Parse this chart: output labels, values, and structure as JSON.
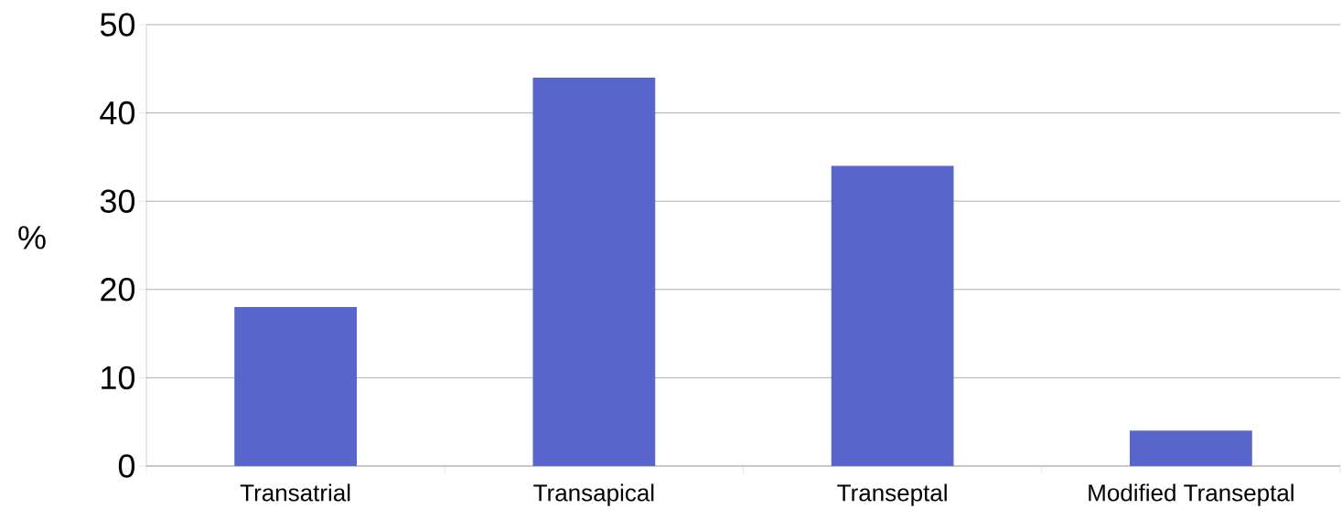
{
  "chart_data": {
    "type": "bar",
    "ylabel": "%",
    "categories": [
      "Transatrial",
      "Transapical",
      "Transeptal",
      "Modified Transeptal"
    ],
    "values": [
      18,
      44,
      34,
      4
    ],
    "color": "#5866cc",
    "ylim": [
      0,
      50
    ],
    "yticks": [
      0,
      10,
      20,
      30,
      40,
      50
    ],
    "grid": "y"
  }
}
